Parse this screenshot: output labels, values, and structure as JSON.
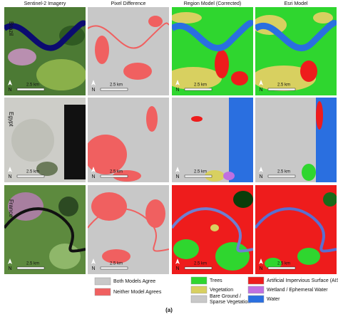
{
  "columns": [
    "Sentinel-2 Imagery",
    "Pixel Difference",
    "Region Model (Corrected)",
    "Esri Model"
  ],
  "rows": [
    "Brazil",
    "Egypt",
    "France"
  ],
  "scale_bar": {
    "label": "2.5 km",
    "north": "N"
  },
  "legend": {
    "difference": [
      "Both Models Agree",
      "Neither Model Agrees"
    ],
    "classes": [
      "Trees",
      "Vegetation",
      "Bare Ground / Sparse Vegetation",
      "Artificial Impervious Surface (AIS)",
      "Wetland / Ephemeral Water",
      "Water"
    ]
  },
  "caption": "(a)"
}
